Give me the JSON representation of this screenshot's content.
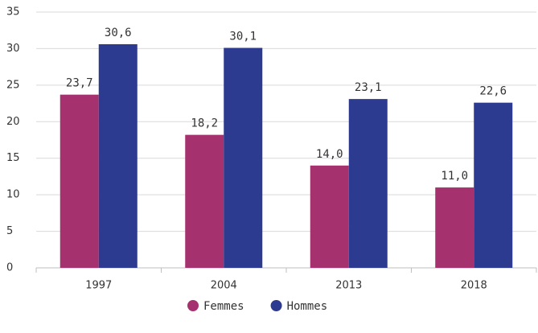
{
  "chart_data": {
    "type": "bar",
    "categories": [
      "1997",
      "2004",
      "2013",
      "2018"
    ],
    "series": [
      {
        "name": "Femmes",
        "color": "#a6316f",
        "values": [
          23.7,
          18.2,
          14.0,
          11.0
        ],
        "value_labels": [
          "23,7",
          "18,2",
          "14,0",
          "11,0"
        ]
      },
      {
        "name": "Hommes",
        "color": "#2c3a8f",
        "values": [
          30.6,
          30.1,
          23.1,
          22.6
        ],
        "value_labels": [
          "30,6",
          "30,1",
          "23,1",
          "22,6"
        ]
      }
    ],
    "ylim": [
      0,
      35
    ],
    "yticks": [
      0,
      5,
      10,
      15,
      20,
      25,
      30,
      35
    ],
    "grid": true,
    "legend": "bottom"
  }
}
